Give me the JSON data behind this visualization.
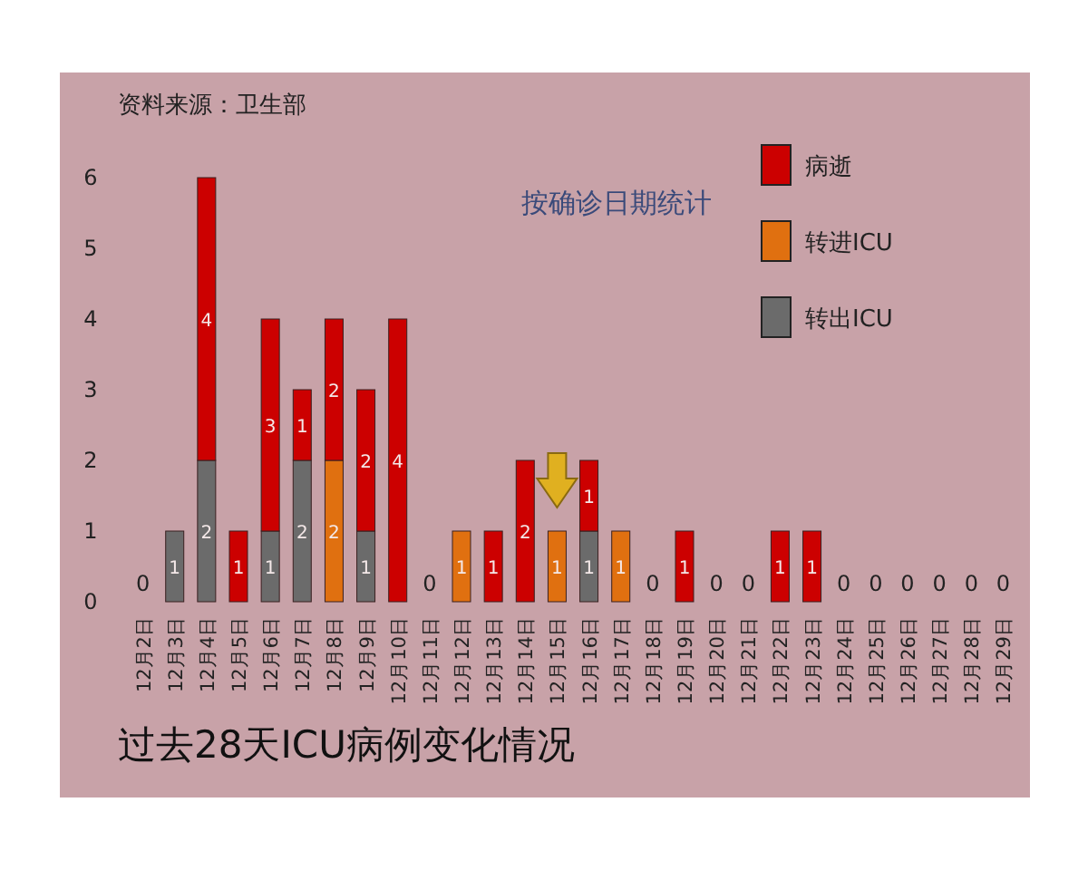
{
  "chart_data": {
    "type": "bar",
    "stacked": true,
    "title": "过去28天ICU病例变化情况",
    "subtitle": "按确诊日期统计",
    "annotations": [
      "资料来源：卫生部"
    ],
    "categories": [
      "12月2日",
      "12月3日",
      "12月4日",
      "12月5日",
      "12月6日",
      "12月7日",
      "12月8日",
      "12月9日",
      "12月10日",
      "12月11日",
      "12月12日",
      "12月13日",
      "12月14日",
      "12月15日",
      "12月16日",
      "12月17日",
      "12月18日",
      "12月19日",
      "12月20日",
      "12月21日",
      "12月22日",
      "12月23日",
      "12月24日",
      "12月25日",
      "12月26日",
      "12月27日",
      "12月28日",
      "12月29日"
    ],
    "series": [
      {
        "name": "转出ICU",
        "color": "#6b6b6b",
        "values": [
          0,
          1,
          2,
          0,
          1,
          2,
          0,
          1,
          0,
          0,
          0,
          0,
          0,
          0,
          1,
          0,
          0,
          0,
          0,
          0,
          0,
          0,
          0,
          0,
          0,
          0,
          0,
          0
        ],
        "value_labels": [
          null,
          "1",
          "2",
          null,
          "1",
          "2",
          null,
          "1",
          null,
          null,
          null,
          null,
          null,
          null,
          "1",
          null,
          null,
          null,
          null,
          null,
          null,
          null,
          null,
          null,
          null,
          null,
          null,
          null
        ]
      },
      {
        "name": "转进ICU",
        "color": "#e07010",
        "values": [
          0,
          0,
          0,
          0,
          0,
          0,
          2,
          0,
          0,
          0,
          1,
          0,
          0,
          1,
          0,
          1,
          0,
          0,
          0,
          0,
          0,
          0,
          0,
          0,
          0,
          0,
          0,
          0
        ],
        "value_labels": [
          null,
          null,
          null,
          null,
          null,
          null,
          "2",
          null,
          null,
          null,
          "1",
          null,
          null,
          "1",
          null,
          "1",
          null,
          null,
          null,
          null,
          null,
          null,
          null,
          null,
          null,
          null,
          null,
          null
        ]
      },
      {
        "name": "病逝",
        "color": "#cc0000",
        "values": [
          0,
          0,
          4,
          1,
          3,
          1,
          2,
          2,
          4,
          0,
          0,
          1,
          2,
          0,
          1,
          0,
          0,
          1,
          0,
          0,
          1,
          1,
          0,
          0,
          0,
          0,
          0,
          0
        ],
        "value_labels": [
          null,
          null,
          "4",
          "1",
          "3",
          "1",
          "2",
          "2",
          "4",
          null,
          null,
          "1",
          "2",
          null,
          "1",
          null,
          null,
          "1",
          null,
          null,
          "1",
          "1",
          null,
          null,
          null,
          null,
          null,
          null
        ]
      }
    ],
    "totals": [
      "0",
      null,
      null,
      null,
      null,
      null,
      null,
      null,
      null,
      "0",
      null,
      null,
      null,
      null,
      null,
      null,
      "0",
      null,
      "0",
      "0",
      null,
      null,
      "0",
      "0",
      "0",
      "0",
      "0",
      "0"
    ],
    "ylim": [
      0,
      6
    ],
    "yticks": [
      0,
      1,
      2,
      3,
      4,
      5,
      6
    ],
    "grid": false,
    "legend": "top right"
  }
}
